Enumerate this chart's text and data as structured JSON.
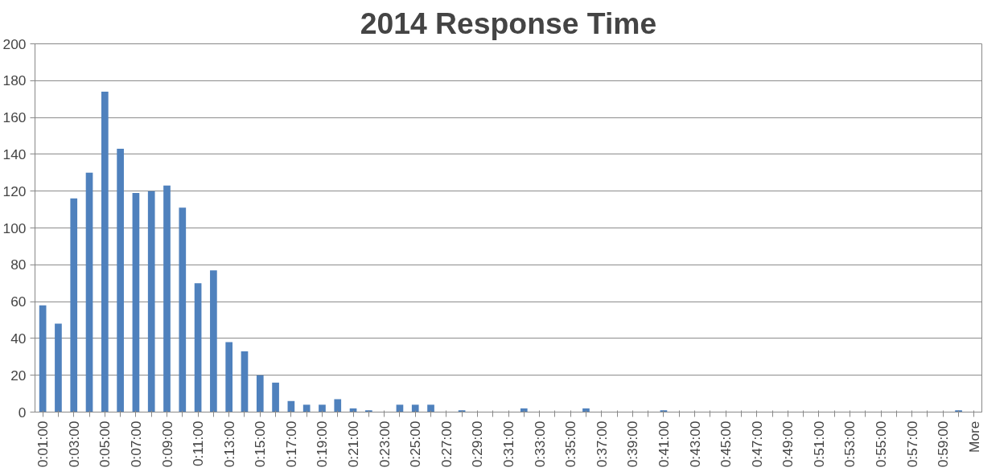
{
  "chart_data": {
    "type": "bar",
    "title": "2014 Response Time",
    "categories": [
      "0:01:00",
      null,
      "0:03:00",
      null,
      "0:05:00",
      null,
      "0:07:00",
      null,
      "0:09:00",
      null,
      "0:11:00",
      null,
      "0:13:00",
      null,
      "0:15:00",
      null,
      "0:17:00",
      null,
      "0:19:00",
      null,
      "0:21:00",
      null,
      "0:23:00",
      null,
      "0:25:00",
      null,
      "0:27:00",
      null,
      "0:29:00",
      null,
      "0:31:00",
      null,
      "0:33:00",
      null,
      "0:35:00",
      null,
      "0:37:00",
      null,
      "0:39:00",
      null,
      "0:41:00",
      null,
      "0:43:00",
      null,
      "0:45:00",
      null,
      "0:47:00",
      null,
      "0:49:00",
      null,
      "0:51:00",
      null,
      "0:53:00",
      null,
      "0:55:00",
      null,
      "0:57:00",
      null,
      "0:59:00",
      null,
      "More"
    ],
    "values": [
      58,
      48,
      116,
      130,
      174,
      143,
      119,
      120,
      123,
      111,
      70,
      77,
      38,
      33,
      20,
      16,
      6,
      4,
      4,
      7,
      2,
      1,
      0,
      4,
      4,
      4,
      0,
      1,
      0,
      0,
      0,
      2,
      0,
      0,
      0,
      2,
      0,
      0,
      0,
      0,
      1,
      0,
      0,
      0,
      0,
      0,
      0,
      0,
      0,
      0,
      0,
      0,
      0,
      0,
      0,
      0,
      0,
      0,
      0,
      1,
      0
    ],
    "color": "#4f81bd",
    "ylim": [
      0,
      200
    ],
    "yticks": [
      0,
      20,
      40,
      60,
      80,
      100,
      120,
      140,
      160,
      180,
      200
    ],
    "grid": "y"
  }
}
